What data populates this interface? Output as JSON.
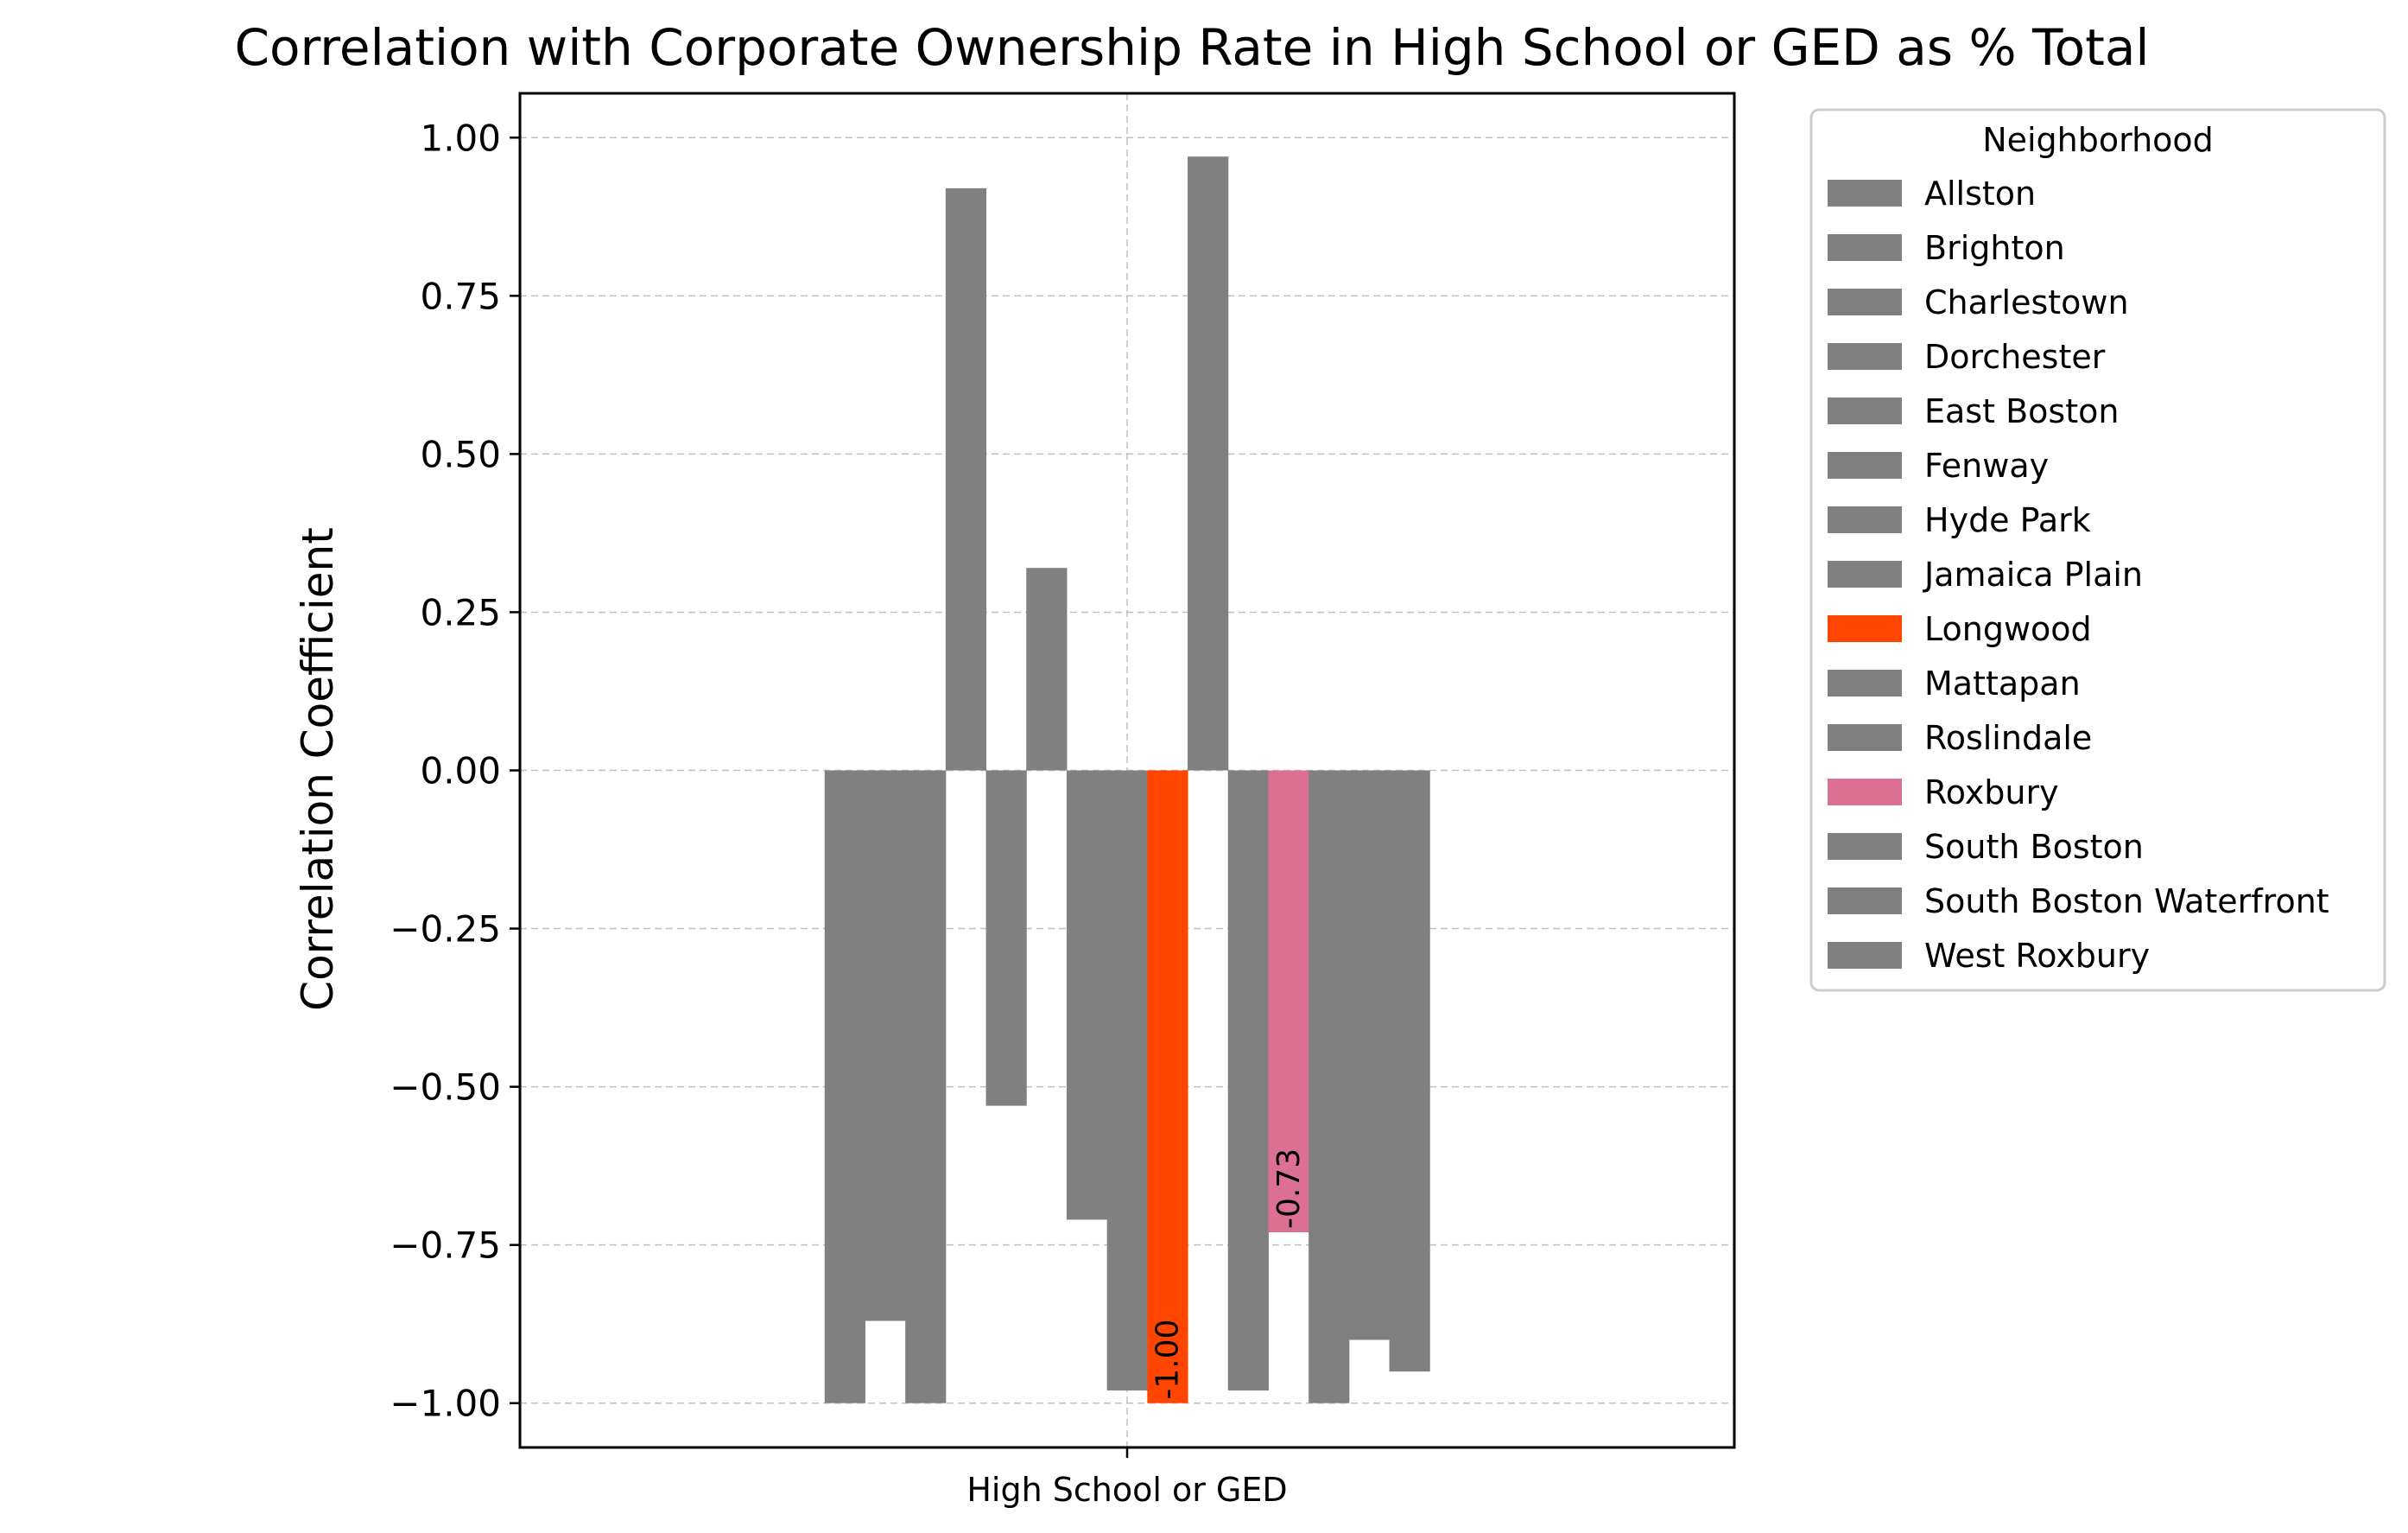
{
  "chart_data": {
    "type": "bar",
    "title": "Correlation with Corporate Ownership Rate in High School or GED as % Total",
    "xlabel": "",
    "ylabel": "Correlation Coefficient",
    "categories": [
      "High School or GED"
    ],
    "ylim": [
      -1.07,
      1.07
    ],
    "yticks": [
      -1.0,
      -0.75,
      -0.5,
      -0.25,
      0.0,
      0.25,
      0.5,
      0.75,
      1.0
    ],
    "ytick_labels": [
      "−1.00",
      "−0.75",
      "−0.50",
      "−0.25",
      "0.00",
      "0.25",
      "0.50",
      "0.75",
      "1.00"
    ],
    "grid": true,
    "legend": {
      "title": "Neighborhood",
      "placement": "outside-right"
    },
    "series": [
      {
        "name": "Allston",
        "values": [
          -1.0
        ],
        "color": "#808080",
        "label": ""
      },
      {
        "name": "Brighton",
        "values": [
          -0.87
        ],
        "color": "#808080",
        "label": ""
      },
      {
        "name": "Charlestown",
        "values": [
          -1.0
        ],
        "color": "#808080",
        "label": ""
      },
      {
        "name": "Dorchester",
        "values": [
          0.92
        ],
        "color": "#808080",
        "label": ""
      },
      {
        "name": "East Boston",
        "values": [
          -0.53
        ],
        "color": "#808080",
        "label": ""
      },
      {
        "name": "Fenway",
        "values": [
          0.32
        ],
        "color": "#808080",
        "label": ""
      },
      {
        "name": "Hyde Park",
        "values": [
          -0.71
        ],
        "color": "#808080",
        "label": ""
      },
      {
        "name": "Jamaica Plain",
        "values": [
          -0.98
        ],
        "color": "#808080",
        "label": ""
      },
      {
        "name": "Longwood",
        "values": [
          -1.0
        ],
        "color": "#ff4500",
        "label": "-1.00"
      },
      {
        "name": "Mattapan",
        "values": [
          0.97
        ],
        "color": "#808080",
        "label": ""
      },
      {
        "name": "Roslindale",
        "values": [
          -0.98
        ],
        "color": "#808080",
        "label": ""
      },
      {
        "name": "Roxbury",
        "values": [
          -0.73
        ],
        "color": "#db7093",
        "label": "-0.73"
      },
      {
        "name": "South Boston",
        "values": [
          -1.0
        ],
        "color": "#808080",
        "label": ""
      },
      {
        "name": "South Boston Waterfront",
        "values": [
          -0.9
        ],
        "color": "#808080",
        "label": ""
      },
      {
        "name": "West Roxbury",
        "values": [
          -0.95
        ],
        "color": "#808080",
        "label": ""
      }
    ]
  }
}
